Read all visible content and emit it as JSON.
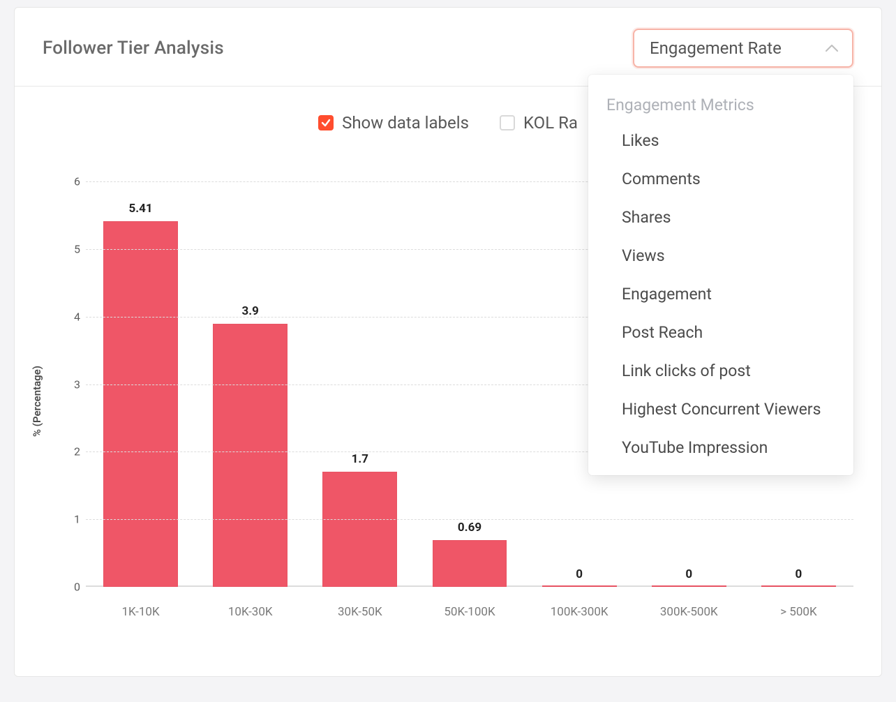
{
  "card": {
    "title": "Follower Tier Analysis"
  },
  "dropdown": {
    "selected": "Engagement Rate",
    "group_label": "Engagement Metrics",
    "options": [
      "Likes",
      "Comments",
      "Shares",
      "Views",
      "Engagement",
      "Post Reach",
      "Link clicks of post",
      "Highest Concurrent Viewers",
      "YouTube Impression"
    ]
  },
  "legend": {
    "show_labels": {
      "label": "Show data labels",
      "checked": true
    },
    "kol_rank": {
      "label": "KOL Ra",
      "checked": false
    }
  },
  "chart": {
    "type": "bar",
    "ylabel": "% (Percentage)",
    "ylim": [
      0,
      6.2
    ],
    "yticks": [
      0,
      1,
      2,
      3,
      4,
      5,
      6
    ],
    "categories": [
      "1K-10K",
      "10K-30K",
      "30K-50K",
      "50K-100K",
      "100K-300K",
      "300K-500K",
      "> 500K"
    ],
    "values": [
      5.41,
      3.9,
      1.7,
      0.69,
      0,
      0,
      0
    ],
    "value_labels": [
      "5.41",
      "3.9",
      "1.7",
      "0.69",
      "0",
      "0",
      "0"
    ],
    "bar_color": "#ef5667",
    "grid_color": "#dcdcdc",
    "background_color": "#ffffff",
    "label_fontsize": 17,
    "tick_fontsize": 16,
    "bar_width": 0.68
  },
  "colors": {
    "accent": "#ff4d2e",
    "dropdown_border": "#f7b4a8",
    "text_muted": "#6a6a6a"
  }
}
